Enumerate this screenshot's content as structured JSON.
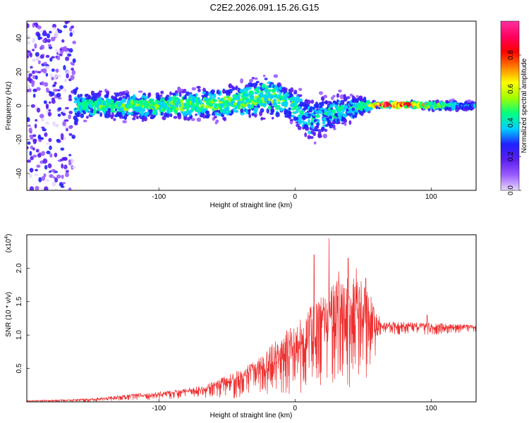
{
  "title": "C2E2.2026.091.15.26.G15",
  "chart_data": [
    {
      "type": "heatmap",
      "xlabel": "Height of straight line (km)",
      "ylabel": "Frequency (Hz)",
      "xlim": [
        -197,
        133
      ],
      "ylim": [
        -50,
        50
      ],
      "xticks": [
        -100,
        0,
        100
      ],
      "yticks": [
        -40,
        -20,
        0,
        20,
        40
      ],
      "colorbar": {
        "label": "Normalized spectral amplitude",
        "range": [
          0,
          1
        ],
        "ticks": [
          0.0,
          0.2,
          0.4,
          0.6,
          0.8
        ],
        "tick_labels": [
          "0.0",
          "0.2",
          "0.4",
          "0.6",
          "0.8"
        ],
        "colors": [
          "#e8d8ff",
          "#9a5cff",
          "#5a1ef0",
          "#2020ff",
          "#00d0ff",
          "#00ff80",
          "#a0ff00",
          "#ffff00",
          "#ff8000",
          "#ff0000",
          "#ff0060",
          "#ff30a0"
        ]
      },
      "profile": [
        {
          "x": -197,
          "center": 0,
          "spread": 50,
          "amplitude": 0.22
        },
        {
          "x": -165,
          "center": 0,
          "spread": 50,
          "amplitude": 0.22
        },
        {
          "x": -160,
          "center": 0,
          "spread": 8,
          "amplitude": 0.45
        },
        {
          "x": -100,
          "center": 0,
          "spread": 8,
          "amplitude": 0.5
        },
        {
          "x": -40,
          "center": 2,
          "spread": 10,
          "amplitude": 0.5
        },
        {
          "x": -20,
          "center": 6,
          "spread": 12,
          "amplitude": 0.5
        },
        {
          "x": 0,
          "center": 0,
          "spread": 10,
          "amplitude": 0.45
        },
        {
          "x": 10,
          "center": -8,
          "spread": 14,
          "amplitude": 0.4
        },
        {
          "x": 50,
          "center": 0,
          "spread": 6,
          "amplitude": 0.45
        },
        {
          "x": 57,
          "center": 0,
          "spread": 2,
          "amplitude": 0.6
        },
        {
          "x": 60,
          "center": 0.5,
          "spread": 1.5,
          "amplitude": 0.95
        },
        {
          "x": 85,
          "center": 0.5,
          "spread": 1.5,
          "amplitude": 0.9
        },
        {
          "x": 100,
          "center": 0,
          "spread": 2.5,
          "amplitude": 0.55
        },
        {
          "x": 133,
          "center": 0,
          "spread": 2.5,
          "amplitude": 0.35
        }
      ]
    },
    {
      "type": "line",
      "xlabel": "Height of straight line (km)",
      "ylabel": "SNR (10 * v/v)",
      "scale_label": "(x10",
      "scale_exponent": "4",
      "scale_suffix": ")",
      "color": "#ee3030",
      "xlim": [
        -197,
        133
      ],
      "ylim": [
        0,
        2.5
      ],
      "xticks": [
        -100,
        0,
        100
      ],
      "yticks": [
        0.5,
        1.0,
        1.5,
        2.0
      ],
      "yticklabels": [
        "0.5",
        "1.0",
        "1.5",
        "2.0"
      ],
      "envelope": [
        {
          "x": -197,
          "low": 0.0,
          "high": 0.02
        },
        {
          "x": -160,
          "low": 0.0,
          "high": 0.04
        },
        {
          "x": -140,
          "low": 0.0,
          "high": 0.07
        },
        {
          "x": -120,
          "low": 0.02,
          "high": 0.12
        },
        {
          "x": -100,
          "low": 0.03,
          "high": 0.15
        },
        {
          "x": -80,
          "low": 0.05,
          "high": 0.2
        },
        {
          "x": -60,
          "low": 0.05,
          "high": 0.3
        },
        {
          "x": -45,
          "low": 0.05,
          "high": 0.45
        },
        {
          "x": -30,
          "low": 0.08,
          "high": 0.6
        },
        {
          "x": -15,
          "low": 0.1,
          "high": 0.9
        },
        {
          "x": 0,
          "low": 0.1,
          "high": 1.2
        },
        {
          "x": 10,
          "low": 0.15,
          "high": 1.4
        },
        {
          "x": 20,
          "low": 0.2,
          "high": 1.6
        },
        {
          "x": 30,
          "low": 0.25,
          "high": 1.8
        },
        {
          "x": 40,
          "low": 0.2,
          "high": 1.9
        },
        {
          "x": 50,
          "low": 0.3,
          "high": 1.8
        },
        {
          "x": 58,
          "low": 0.4,
          "high": 1.5
        },
        {
          "x": 62,
          "low": 1.0,
          "high": 1.2
        },
        {
          "x": 80,
          "low": 1.0,
          "high": 1.2
        },
        {
          "x": 100,
          "low": 1.0,
          "high": 1.18
        },
        {
          "x": 133,
          "low": 1.05,
          "high": 1.15
        }
      ],
      "peaks": [
        {
          "x": 25,
          "y": 2.45
        },
        {
          "x": 14,
          "y": 2.2
        },
        {
          "x": 39,
          "y": 2.15
        },
        {
          "x": 45,
          "y": 2.0
        },
        {
          "x": 32,
          "y": 1.95
        },
        {
          "x": 52,
          "y": 1.85
        },
        {
          "x": 62,
          "y": 1.28
        },
        {
          "x": 97,
          "y": 1.3
        }
      ]
    }
  ]
}
